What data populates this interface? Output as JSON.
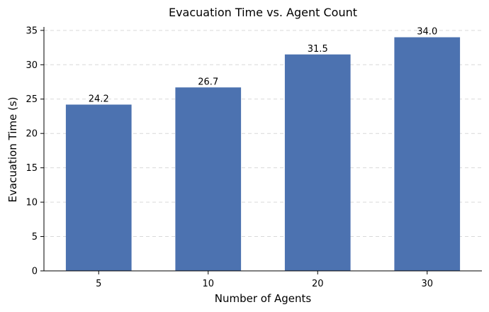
{
  "chart_data": {
    "type": "bar",
    "title": "Evacuation Time vs. Agent Count",
    "xlabel": "Number of Agents",
    "ylabel": "Evacuation Time (s)",
    "categories": [
      "5",
      "10",
      "20",
      "30"
    ],
    "values": [
      24.2,
      26.7,
      31.5,
      34.0
    ],
    "data_labels": [
      "24.2",
      "26.7",
      "31.5",
      "34.0"
    ],
    "ylim": [
      0,
      35.5
    ],
    "yticks": [
      0,
      5,
      10,
      15,
      20,
      25,
      30,
      35
    ],
    "grid": "horizontal dashed",
    "bar_color": "#4c72b0"
  }
}
